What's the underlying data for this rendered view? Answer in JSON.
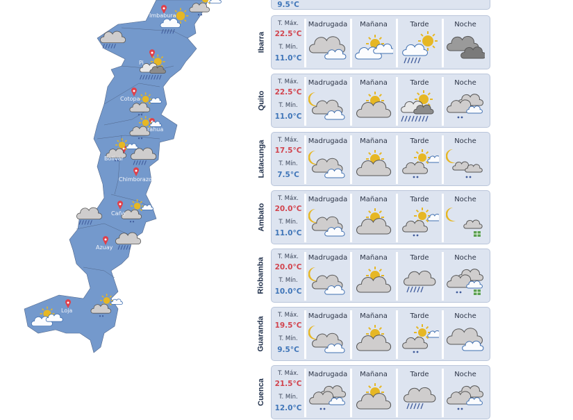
{
  "map": {
    "labels": [
      {
        "text": "Imbabura"
      },
      {
        "text": "Pi"
      },
      {
        "text": "Cotopa"
      },
      {
        "text": "rahua"
      },
      {
        "text": "Bolívar"
      },
      {
        "text": "Chimborazo"
      },
      {
        "text": "Caña"
      },
      {
        "text": "Azuay"
      },
      {
        "text": "Loja"
      }
    ],
    "fill": "#7499cc",
    "pin_color": "#e0404a"
  },
  "top_partial": {
    "min": "9.5°C"
  },
  "periods": [
    "Madrugada",
    "Mañana",
    "Tarde",
    "Noche"
  ],
  "labels": {
    "max": "T. Máx.",
    "min": "T. Mín."
  },
  "colors": {
    "max": "#d2444e",
    "min": "#3f75b8",
    "card": "#dde4f0"
  },
  "cities": [
    {
      "name": "Ibarra",
      "max": "22.5°C",
      "min": "11.0°C",
      "icons": [
        "cloudy-overcast",
        "partly-sunny",
        "sun-rain",
        "dark-clouds"
      ]
    },
    {
      "name": "Quito",
      "max": "22.5°C",
      "min": "11.0°C",
      "icons": [
        "moon-cloud",
        "sun-gray-cloud",
        "sun-storm-rain",
        "clouds-drizzle"
      ]
    },
    {
      "name": "Latacunga",
      "max": "17.5°C",
      "min": "7.5°C",
      "icons": [
        "moon-cloud",
        "sun-gray-cloud",
        "sun-cloud-drizzle",
        "moon-clouds"
      ]
    },
    {
      "name": "Ambato",
      "max": "20.0°C",
      "min": "11.0°C",
      "icons": [
        "moon-cloud",
        "sun-gray-cloud",
        "sun-cloud-drizzle",
        "moon-cloud-hail"
      ]
    },
    {
      "name": "Riobamba",
      "max": "20.0°C",
      "min": "10.0°C",
      "icons": [
        "moon-cloud",
        "sun-gray-cloud",
        "cloud-rain",
        "clouds-drizzle-hail"
      ]
    },
    {
      "name": "Guaranda",
      "max": "19.5°C",
      "min": "9.5°C",
      "icons": [
        "moon-cloud",
        "sun-gray-cloud",
        "sun-cloud-drizzle",
        "cloudy-overcast"
      ]
    },
    {
      "name": "Cuenca",
      "max": "21.5°C",
      "min": "12.0°C",
      "icons": [
        "clouds-drizzle",
        "sun-gray-cloud",
        "cloud-rain",
        "clouds-drizzle"
      ]
    }
  ]
}
